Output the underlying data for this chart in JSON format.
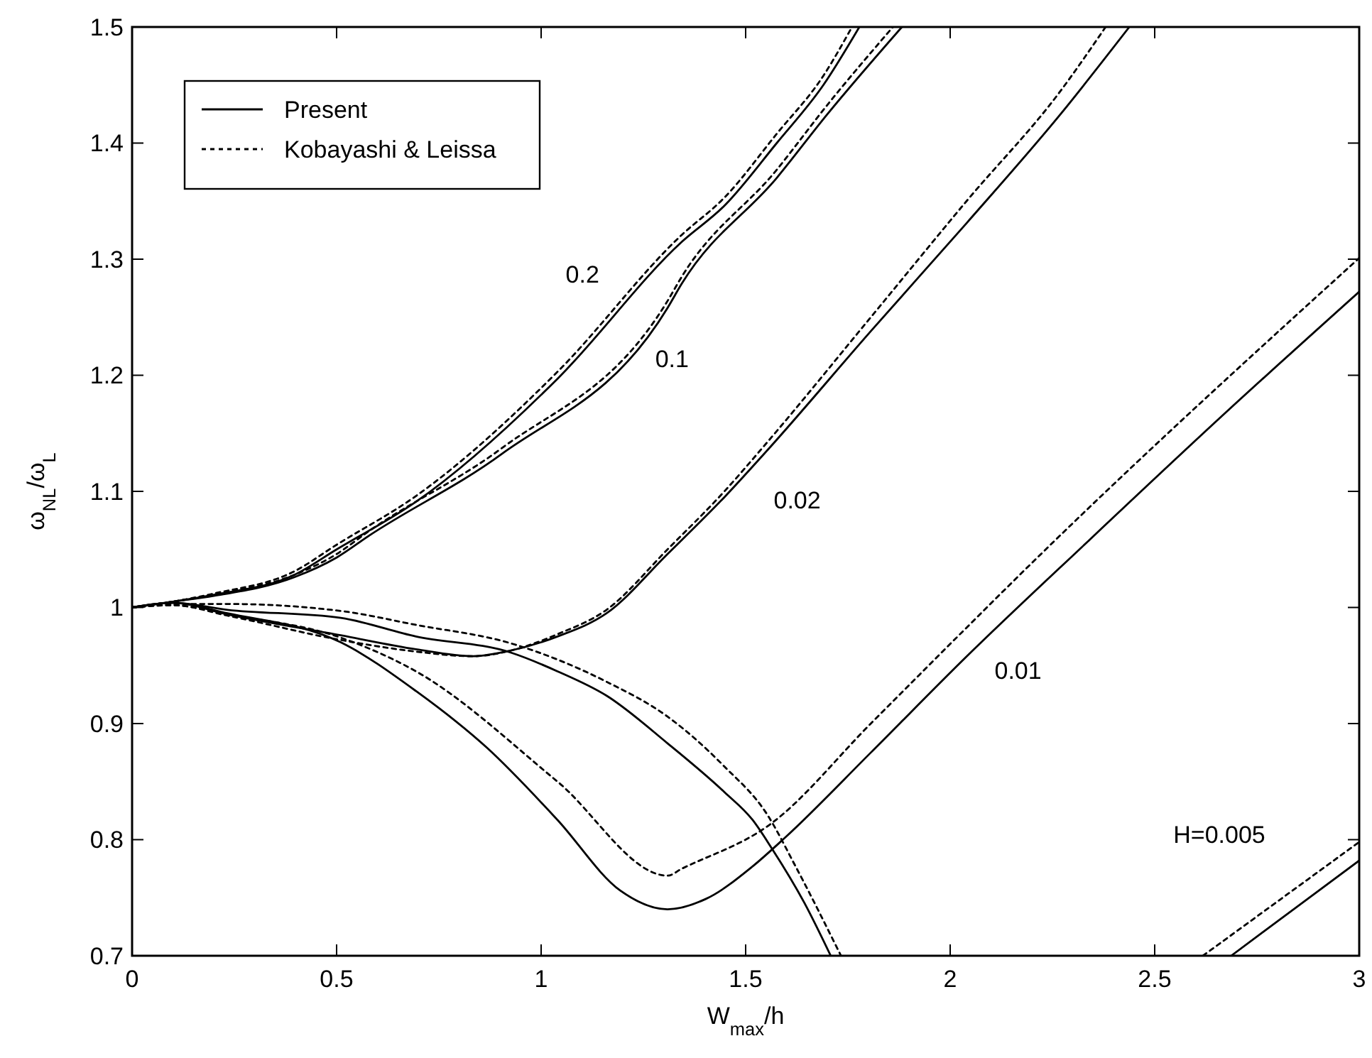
{
  "chart_data": {
    "type": "line",
    "xlabel": "W$_{max}$/h",
    "ylabel": "ω$_{NL}$/ω$_{L}$",
    "xlim": [
      0,
      3
    ],
    "ylim": [
      0.7,
      1.5
    ],
    "xticks": [
      0,
      0.5,
      1,
      1.5,
      2,
      2.5,
      3
    ],
    "yticks": [
      0.7,
      0.8,
      0.9,
      1,
      1.1,
      1.2,
      1.3,
      1.4,
      1.5
    ],
    "grid": false,
    "legend": "top left",
    "marker": "none",
    "series": [
      {
        "name": "Present",
        "color": "#000000",
        "line_style": "solid",
        "x": [
          0,
          0.1,
          0.2,
          0.396,
          0.5,
          0.694,
          1.04,
          1.344,
          1.448,
          1.576,
          1.69,
          1.778
        ],
        "values": [
          1,
          1.005,
          1.011,
          1.028,
          1.05,
          1.091,
          1.197,
          1.315,
          1.346,
          1.4,
          1.45,
          1.5
        ]
      },
      {
        "name": "Kobayashi & Leissa",
        "color": "#000000",
        "line_style": "dotted",
        "x": [
          0,
          0.1,
          0.2,
          0.396,
          0.5,
          0.694,
          1.04,
          1.344,
          1.448,
          1.576,
          1.69,
          1.76
        ],
        "values": [
          1,
          1.005,
          1.012,
          1.031,
          1.054,
          1.096,
          1.203,
          1.321,
          1.353,
          1.408,
          1.458,
          1.5
        ]
      },
      {
        "color": "#000000",
        "line_style": "solid",
        "x": [
          0,
          0.1,
          0.2,
          0.396,
          0.5,
          0.58,
          0.903,
          1.309,
          1.344,
          1.576,
          1.7,
          1.882
        ],
        "values": [
          1,
          1.005,
          1.01,
          1.026,
          1.043,
          1.062,
          1.132,
          1.258,
          1.279,
          1.37,
          1.425,
          1.5
        ]
      },
      {
        "color": "#000000",
        "line_style": "dotted",
        "x": [
          0,
          0.1,
          0.2,
          0.396,
          0.5,
          0.58,
          0.903,
          1.309,
          1.344,
          1.576,
          1.7,
          1.86
        ],
        "values": [
          1,
          1.005,
          1.011,
          1.028,
          1.046,
          1.066,
          1.137,
          1.264,
          1.285,
          1.377,
          1.433,
          1.5
        ]
      },
      {
        "color": "#000000",
        "line_style": "solid",
        "x": [
          0,
          0.1,
          0.233,
          0.51,
          0.694,
          0.833,
          0.927,
          1.04,
          1.16,
          1.309,
          1.448,
          1.552,
          1.806,
          2.04,
          2.27,
          2.438
        ],
        "values": [
          1,
          1.004,
          0.994,
          0.976,
          0.964,
          0.958,
          0.963,
          0.975,
          0.995,
          1.046,
          1.095,
          1.135,
          1.238,
          1.331,
          1.425,
          1.5
        ]
      },
      {
        "color": "#000000",
        "line_style": "dotted",
        "x": [
          0,
          0.1,
          0.233,
          0.51,
          0.694,
          0.833,
          0.927,
          1.04,
          1.16,
          1.309,
          1.448,
          1.552,
          1.806,
          2.04,
          2.27,
          2.38
        ],
        "values": [
          1,
          1.002,
          0.993,
          0.972,
          0.962,
          0.958,
          0.963,
          0.977,
          0.998,
          1.05,
          1.1,
          1.142,
          1.25,
          1.35,
          1.445,
          1.5
        ]
      },
      {
        "color": "#000000",
        "line_style": "solid",
        "x": [
          0,
          0.1,
          0.233,
          0.51,
          0.694,
          0.868,
          1.04,
          1.194,
          1.309,
          1.403,
          1.517,
          1.597,
          1.806,
          2.038,
          2.34,
          2.674,
          3
        ],
        "values": [
          1,
          1.004,
          0.995,
          0.97,
          0.928,
          0.879,
          0.817,
          0.756,
          0.74,
          0.749,
          0.777,
          0.802,
          0.875,
          0.957,
          1.058,
          1.168,
          1.272
        ]
      },
      {
        "color": "#000000",
        "line_style": "dotted",
        "x": [
          0,
          0.1,
          0.233,
          0.51,
          0.694,
          1.04,
          1.309,
          1.344,
          1.563,
          1.806,
          2.257,
          3
        ],
        "values": [
          1,
          1.002,
          0.994,
          0.974,
          0.945,
          0.85,
          0.769,
          0.775,
          0.814,
          0.9,
          1.058,
          1.301
        ]
      },
      {
        "color": "#000000",
        "line_style": "solid",
        "x": [
          0,
          0.1,
          0.233,
          0.51,
          0.694,
          0.927,
          1.04,
          1.16,
          1.309,
          1.448,
          1.517,
          1.563,
          1.646,
          1.708,
          null,
          2.687,
          3
        ],
        "values": [
          1,
          1.004,
          0.998,
          0.991,
          0.975,
          0.961,
          0.945,
          0.924,
          0.883,
          0.841,
          0.817,
          0.793,
          0.744,
          0.7,
          null,
          0.7,
          0.782
        ]
      },
      {
        "color": "#000000",
        "line_style": "dotted",
        "x": [
          0,
          0.1,
          0.233,
          0.51,
          0.694,
          0.927,
          1.16,
          1.309,
          1.448,
          1.552,
          1.622,
          1.733,
          null,
          2.618,
          3
        ],
        "values": [
          1,
          1.003,
          1.003,
          0.997,
          0.985,
          0.969,
          0.936,
          0.906,
          0.863,
          0.822,
          0.777,
          0.7,
          null,
          0.7,
          0.798
        ]
      }
    ],
    "annotations": [
      "0.2",
      "0.1",
      "0.02",
      "0.01",
      "H=0.005"
    ]
  }
}
